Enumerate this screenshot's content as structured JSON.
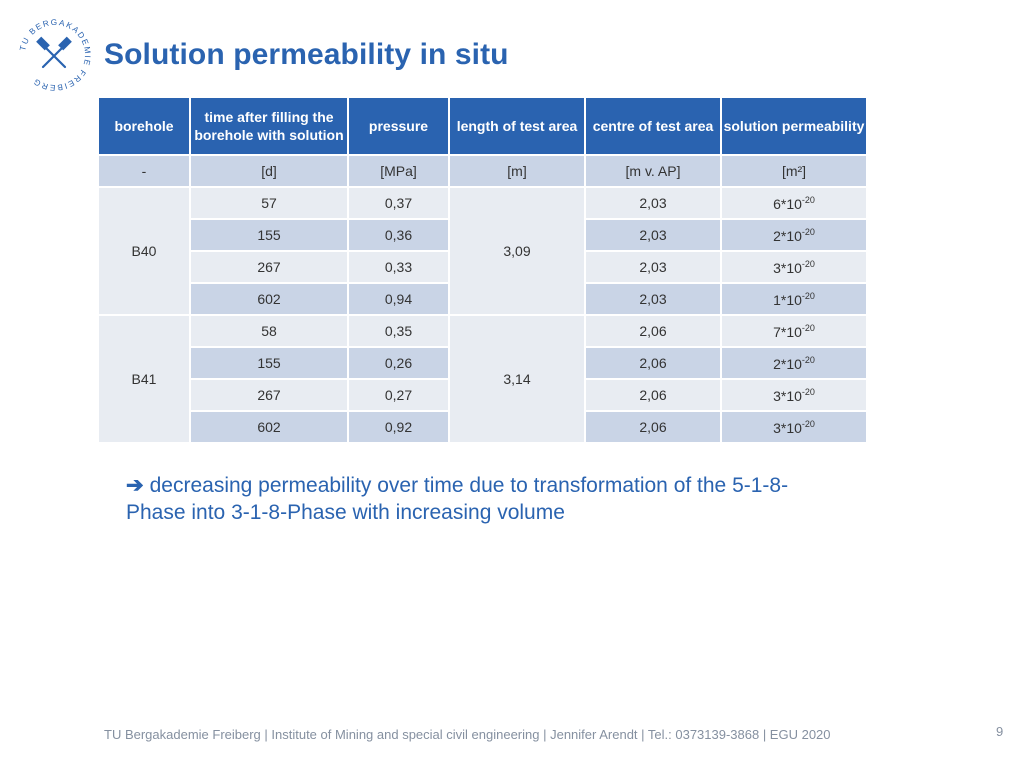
{
  "header": {
    "title": "Solution permeability in situ",
    "logo_text": "TU BERGAKADEMIE FREIBERG"
  },
  "table": {
    "headers": [
      "borehole",
      "time after filling the borehole with solution",
      "pressure",
      "length of test area",
      "centre of test area",
      "solution permeability"
    ],
    "units": [
      "-",
      "[d]",
      "[MPa]",
      "[m]",
      "[m v. AP]",
      "[m²]"
    ],
    "groups": [
      {
        "borehole": "B40",
        "length": "3,09",
        "rows": [
          {
            "time": "57",
            "pressure": "0,37",
            "centre": "2,03",
            "perm_base": "6*10",
            "perm_exp": "-20"
          },
          {
            "time": "155",
            "pressure": "0,36",
            "centre": "2,03",
            "perm_base": "2*10",
            "perm_exp": "-20"
          },
          {
            "time": "267",
            "pressure": "0,33",
            "centre": "2,03",
            "perm_base": "3*10",
            "perm_exp": "-20"
          },
          {
            "time": "602",
            "pressure": "0,94",
            "centre": "2,03",
            "perm_base": "1*10",
            "perm_exp": "-20"
          }
        ]
      },
      {
        "borehole": "B41",
        "length": "3,14",
        "rows": [
          {
            "time": "58",
            "pressure": "0,35",
            "centre": "2,06",
            "perm_base": "7*10",
            "perm_exp": "-20"
          },
          {
            "time": "155",
            "pressure": "0,26",
            "centre": "2,06",
            "perm_base": "2*10",
            "perm_exp": "-20"
          },
          {
            "time": "267",
            "pressure": "0,27",
            "centre": "2,06",
            "perm_base": "3*10",
            "perm_exp": "-20"
          },
          {
            "time": "602",
            "pressure": "0,92",
            "centre": "2,06",
            "perm_base": "3*10",
            "perm_exp": "-20"
          }
        ]
      }
    ]
  },
  "conclusion": {
    "arrow": "➔",
    "text": "decreasing permeability over time due to transformation of the 5-1-8-Phase into 3-1-8-Phase with increasing volume"
  },
  "footer": {
    "text": "TU Bergakademie Freiberg | Institute of Mining and special civil engineering  | Jennifer Arendt | Tel.: 0373139-3868 | EGU 2020",
    "page": "9"
  },
  "colors": {
    "accent": "#2a63b0",
    "row_light": "#e8ecf2",
    "row_dark": "#c9d4e6"
  }
}
